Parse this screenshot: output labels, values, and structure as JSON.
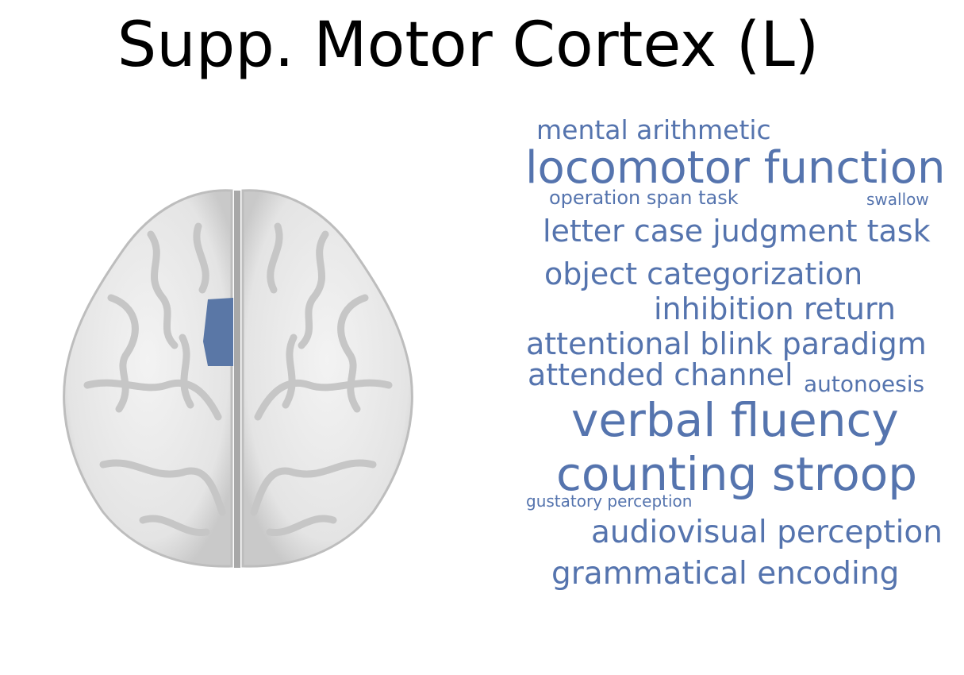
{
  "title": "Supp. Motor Cortex (L)",
  "colors": {
    "word": "#5574ae",
    "region": "#5a77a6",
    "brain": "#e6e6e6"
  },
  "brain_image": {
    "icon": "axial-brain-slice",
    "highlight": "left-supplementary-motor-area"
  },
  "word_cloud": [
    "mental arithmetic",
    "locomotor function",
    "operation span task",
    "swallow",
    "letter case judgment task",
    "object categorization",
    "inhibition return",
    "attentional blink paradigm",
    "attended channel",
    "autonoesis",
    "verbal fluency",
    "counting stroop",
    "gustatory perception",
    "audiovisual perception",
    "grammatical encoding"
  ]
}
